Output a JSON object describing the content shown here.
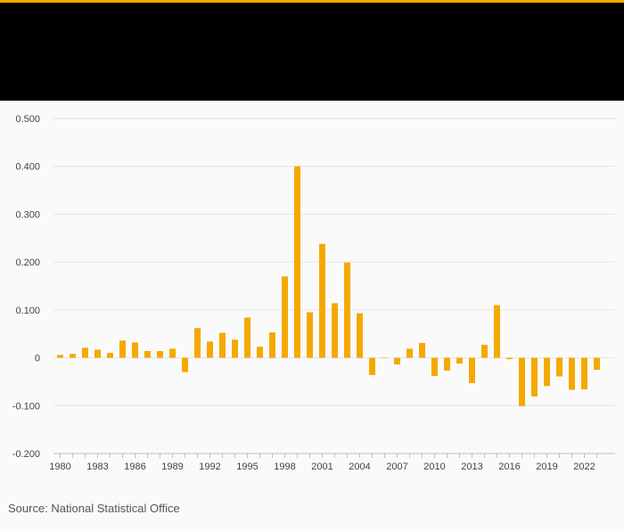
{
  "colors": {
    "accent": "#f5a800",
    "header": "#000000",
    "background": "#fafafa",
    "grid": "#e3e3e3",
    "text": "#555555"
  },
  "source": "Source: National Statistical Office",
  "chart_data": {
    "type": "bar",
    "title": "",
    "xlabel": "",
    "ylabel": "",
    "ylim": [
      -0.2,
      0.5
    ],
    "y_ticks": [
      -0.2,
      -0.1,
      0,
      0.1,
      0.2,
      0.3,
      0.4,
      0.5
    ],
    "y_tick_labels": [
      "-0.200",
      "-0.100",
      "0",
      "0.100",
      "0.200",
      "0.300",
      "0.400",
      "0.500"
    ],
    "x_tick_labels": [
      "1980",
      "1983",
      "1986",
      "1989",
      "1992",
      "1995",
      "1998",
      "2001",
      "2004",
      "2007",
      "2010",
      "2013",
      "2016",
      "2019",
      "2022"
    ],
    "grid": true,
    "series_color": "#f5a800",
    "categories": [
      1980,
      1981,
      1982,
      1983,
      1984,
      1985,
      1986,
      1987,
      1988,
      1989,
      1990,
      1991,
      1992,
      1993,
      1994,
      1995,
      1996,
      1997,
      1998,
      1999,
      2000,
      2001,
      2002,
      2003,
      2004,
      2005,
      2006,
      2007,
      2008,
      2009,
      2010,
      2011,
      2012,
      2013,
      2014,
      2015,
      2016,
      2017,
      2018,
      2019,
      2020,
      2021,
      2022,
      2023
    ],
    "values": [
      0.006,
      0.008,
      0.021,
      0.017,
      0.01,
      0.036,
      0.032,
      0.014,
      0.014,
      0.019,
      -0.03,
      0.062,
      0.034,
      0.052,
      0.038,
      0.084,
      0.023,
      0.053,
      0.17,
      0.4,
      0.095,
      0.238,
      0.114,
      0.199,
      0.093,
      -0.036,
      0.0,
      -0.014,
      0.019,
      0.031,
      -0.038,
      -0.027,
      -0.012,
      -0.053,
      0.027,
      0.11,
      -0.003,
      -0.101,
      -0.081,
      -0.059,
      -0.039,
      -0.067,
      -0.066,
      -0.025
    ]
  }
}
